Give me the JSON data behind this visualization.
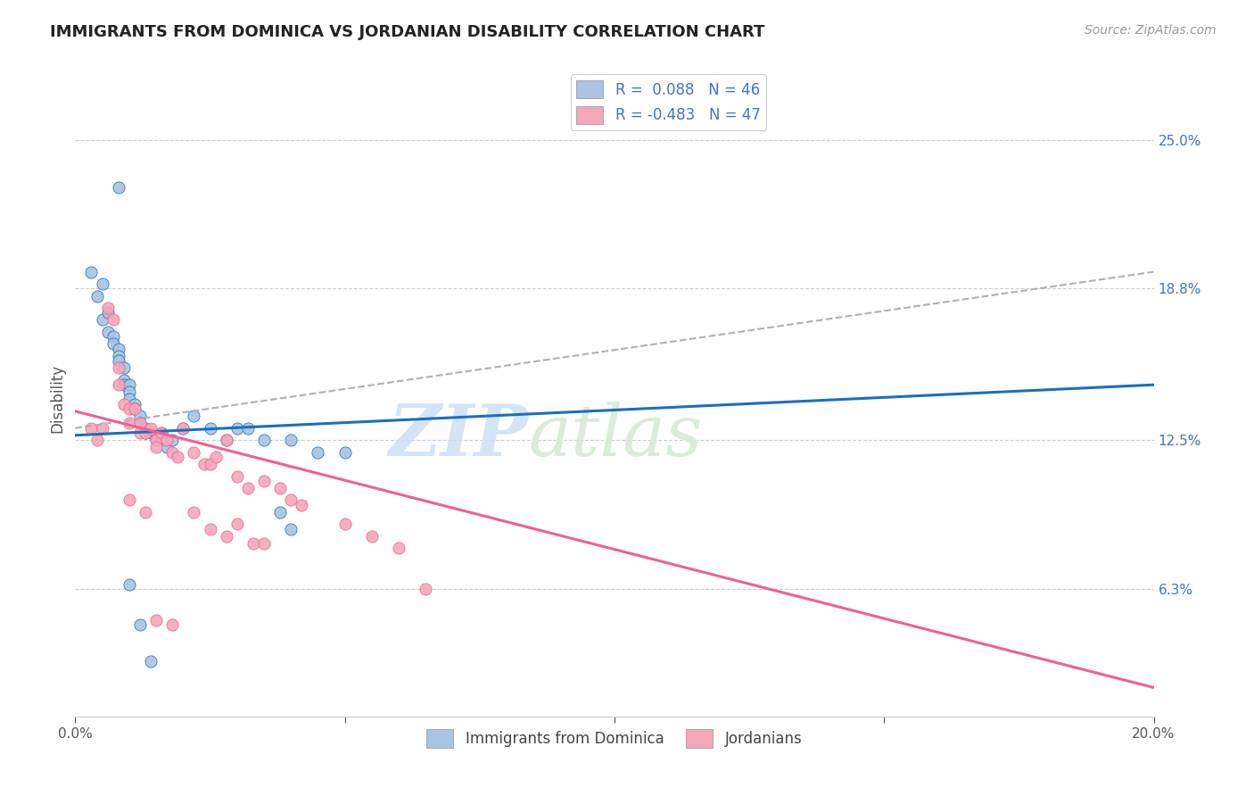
{
  "title": "IMMIGRANTS FROM DOMINICA VS JORDANIAN DISABILITY CORRELATION CHART",
  "source": "Source: ZipAtlas.com",
  "ylabel": "Disability",
  "ytick_labels": [
    "25.0%",
    "18.8%",
    "12.5%",
    "6.3%"
  ],
  "ytick_values": [
    0.25,
    0.188,
    0.125,
    0.063
  ],
  "xlim": [
    0.0,
    0.2
  ],
  "ylim": [
    0.01,
    0.275
  ],
  "color_blue": "#a8c4e0",
  "color_pink": "#f4a7b9",
  "line_blue": "#1a6fbd",
  "line_pink": "#f06090",
  "line_dashed": "#b0b0b0",
  "watermark_zip": "ZIP",
  "watermark_atlas": "atlas",
  "blue_line_x": [
    0.0,
    0.2
  ],
  "blue_line_y": [
    0.127,
    0.148
  ],
  "dash_line_x": [
    0.0,
    0.2
  ],
  "dash_line_y": [
    0.13,
    0.195
  ],
  "pink_line_x": [
    0.0,
    0.2
  ],
  "pink_line_y": [
    0.137,
    0.022
  ],
  "blue_scatter_x": [
    0.003,
    0.004,
    0.005,
    0.005,
    0.006,
    0.006,
    0.007,
    0.007,
    0.008,
    0.008,
    0.008,
    0.009,
    0.009,
    0.009,
    0.01,
    0.01,
    0.01,
    0.011,
    0.011,
    0.012,
    0.012,
    0.013,
    0.013,
    0.014,
    0.015,
    0.015,
    0.016,
    0.016,
    0.017,
    0.018,
    0.02,
    0.022,
    0.025,
    0.028,
    0.03,
    0.032,
    0.035,
    0.04,
    0.045,
    0.05,
    0.01,
    0.012,
    0.014,
    0.038,
    0.04,
    0.008
  ],
  "blue_scatter_y": [
    0.195,
    0.185,
    0.19,
    0.175,
    0.178,
    0.17,
    0.168,
    0.165,
    0.163,
    0.16,
    0.158,
    0.155,
    0.15,
    0.148,
    0.148,
    0.145,
    0.142,
    0.14,
    0.138,
    0.135,
    0.132,
    0.13,
    0.128,
    0.128,
    0.127,
    0.125,
    0.128,
    0.125,
    0.122,
    0.125,
    0.13,
    0.135,
    0.13,
    0.125,
    0.13,
    0.13,
    0.125,
    0.125,
    0.12,
    0.12,
    0.065,
    0.048,
    0.033,
    0.095,
    0.088,
    0.23
  ],
  "pink_scatter_x": [
    0.003,
    0.004,
    0.005,
    0.006,
    0.007,
    0.008,
    0.008,
    0.009,
    0.01,
    0.01,
    0.011,
    0.012,
    0.012,
    0.013,
    0.014,
    0.015,
    0.015,
    0.016,
    0.017,
    0.018,
    0.019,
    0.02,
    0.022,
    0.024,
    0.025,
    0.026,
    0.028,
    0.03,
    0.032,
    0.035,
    0.038,
    0.04,
    0.042,
    0.05,
    0.055,
    0.06,
    0.01,
    0.013,
    0.022,
    0.025,
    0.028,
    0.03,
    0.033,
    0.035,
    0.065,
    0.015,
    0.018
  ],
  "pink_scatter_y": [
    0.13,
    0.125,
    0.13,
    0.18,
    0.175,
    0.155,
    0.148,
    0.14,
    0.138,
    0.132,
    0.138,
    0.132,
    0.128,
    0.128,
    0.13,
    0.125,
    0.122,
    0.128,
    0.125,
    0.12,
    0.118,
    0.13,
    0.12,
    0.115,
    0.115,
    0.118,
    0.125,
    0.11,
    0.105,
    0.108,
    0.105,
    0.1,
    0.098,
    0.09,
    0.085,
    0.08,
    0.1,
    0.095,
    0.095,
    0.088,
    0.085,
    0.09,
    0.082,
    0.082,
    0.063,
    0.05,
    0.048
  ]
}
